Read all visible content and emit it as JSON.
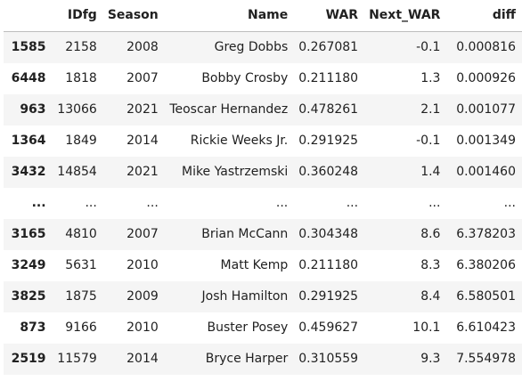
{
  "table": {
    "columns": [
      "",
      "IDfg",
      "Season",
      "Name",
      "WAR",
      "Next_WAR",
      "diff"
    ],
    "rows": [
      {
        "index": "1585",
        "cells": [
          "2158",
          "2008",
          "Greg Dobbs",
          "0.267081",
          "-0.1",
          "0.000816"
        ]
      },
      {
        "index": "6448",
        "cells": [
          "1818",
          "2007",
          "Bobby Crosby",
          "0.211180",
          "1.3",
          "0.000926"
        ]
      },
      {
        "index": "963",
        "cells": [
          "13066",
          "2021",
          "Teoscar Hernandez",
          "0.478261",
          "2.1",
          "0.001077"
        ]
      },
      {
        "index": "1364",
        "cells": [
          "1849",
          "2014",
          "Rickie Weeks Jr.",
          "0.291925",
          "-0.1",
          "0.001349"
        ]
      },
      {
        "index": "3432",
        "cells": [
          "14854",
          "2021",
          "Mike Yastrzemski",
          "0.360248",
          "1.4",
          "0.001460"
        ]
      },
      {
        "index": "...",
        "cells": [
          "...",
          "...",
          "...",
          "...",
          "...",
          "..."
        ]
      },
      {
        "index": "3165",
        "cells": [
          "4810",
          "2007",
          "Brian McCann",
          "0.304348",
          "8.6",
          "6.378203"
        ]
      },
      {
        "index": "3249",
        "cells": [
          "5631",
          "2010",
          "Matt Kemp",
          "0.211180",
          "8.3",
          "6.380206"
        ]
      },
      {
        "index": "3825",
        "cells": [
          "1875",
          "2009",
          "Josh Hamilton",
          "0.291925",
          "8.4",
          "6.580501"
        ]
      },
      {
        "index": "873",
        "cells": [
          "9166",
          "2010",
          "Buster Posey",
          "0.459627",
          "10.1",
          "6.610423"
        ]
      },
      {
        "index": "2519",
        "cells": [
          "11579",
          "2014",
          "Bryce Harper",
          "0.310559",
          "9.3",
          "7.554978"
        ]
      }
    ]
  }
}
